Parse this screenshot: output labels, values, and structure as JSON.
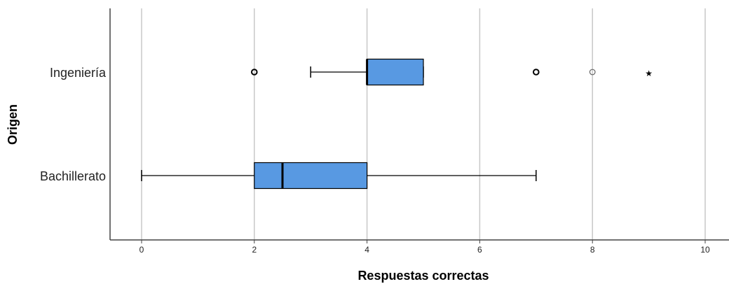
{
  "chart_data": {
    "type": "boxplot",
    "orientation": "horizontal",
    "xlabel": "Respuestas correctas",
    "ylabel": "Origen",
    "xlim": [
      0,
      10
    ],
    "xticks": [
      "0",
      "2",
      "4",
      "6",
      "8",
      "10"
    ],
    "grid": "vertical",
    "box_color": "#5899e2",
    "categories": [
      "Ingeniería",
      "Bachillerato"
    ],
    "boxes": [
      {
        "category": "Ingeniería",
        "whisker_low": 3,
        "q1": 4,
        "median": 4,
        "q3": 5,
        "whisker_high": 5,
        "outliers": [
          2,
          7,
          8
        ],
        "extremes": [
          9
        ]
      },
      {
        "category": "Bachillerato",
        "whisker_low": 0,
        "q1": 2,
        "median": 2.5,
        "q3": 4,
        "whisker_high": 7,
        "outliers": [],
        "extremes": []
      }
    ]
  }
}
